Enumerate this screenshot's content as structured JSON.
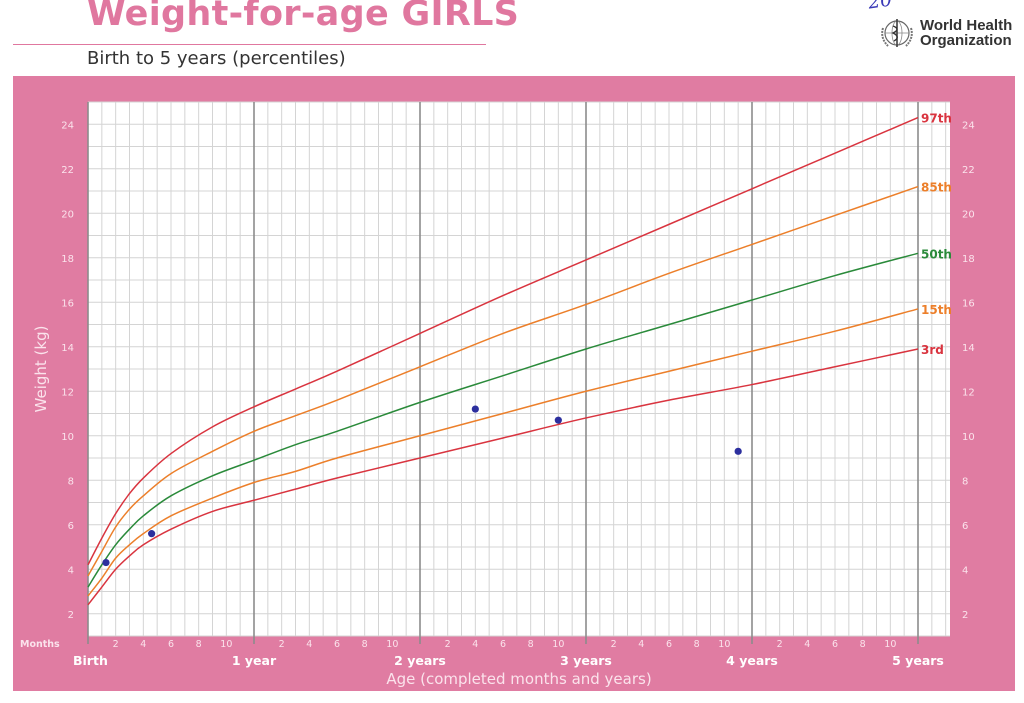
{
  "header": {
    "title": "Weight-for-age GIRLS",
    "subtitle": "Birth to 5 years (percentiles)",
    "handwritten_note": "20",
    "org_name_line1": "World Health",
    "org_name_line2": "Organization"
  },
  "colors": {
    "frame_pink": "#e07ca2",
    "title_pink": "#e0779f",
    "p3": "#d9343f",
    "p15": "#ec7f2a",
    "p50": "#2a8a3a",
    "p85": "#ec7f2a",
    "p97": "#d9343f",
    "point": "#2c2f9e",
    "grid_minor": "#d4d4d4",
    "grid_major": "#8c8c8c"
  },
  "axis": {
    "y_label": "Weight (kg)",
    "x_label": "Age (completed months and years)",
    "months_label": "Months",
    "year_labels": [
      "Birth",
      "1 year",
      "2 years",
      "3 years",
      "4 years",
      "5 years"
    ],
    "month_tick_labels": [
      "2",
      "4",
      "6",
      "8",
      "10"
    ],
    "y_tick_labels": [
      "2",
      "4",
      "6",
      "8",
      "10",
      "12",
      "14",
      "16",
      "18",
      "20",
      "22",
      "24"
    ]
  },
  "chart_data": {
    "type": "line",
    "title": "Weight-for-age GIRLS",
    "subtitle": "Birth to 5 years (percentiles)",
    "xlabel": "Age (completed months and years)",
    "ylabel": "Weight (kg)",
    "xlim": [
      0,
      62.4
    ],
    "ylim": [
      1,
      25
    ],
    "grid": true,
    "x_months": [
      0,
      1,
      2,
      3,
      4,
      6,
      9,
      12,
      15,
      18,
      24,
      30,
      36,
      42,
      48,
      54,
      60
    ],
    "series": [
      {
        "name": "3rd",
        "label": "3rd",
        "values": [
          2.4,
          3.2,
          4.0,
          4.6,
          5.1,
          5.8,
          6.6,
          7.1,
          7.6,
          8.1,
          9.0,
          9.9,
          10.8,
          11.6,
          12.3,
          13.1,
          13.9
        ]
      },
      {
        "name": "15th",
        "label": "15th",
        "values": [
          2.8,
          3.6,
          4.5,
          5.1,
          5.6,
          6.4,
          7.2,
          7.9,
          8.4,
          9.0,
          10.0,
          11.0,
          12.0,
          12.9,
          13.8,
          14.7,
          15.7
        ]
      },
      {
        "name": "50th",
        "label": "50th",
        "values": [
          3.2,
          4.2,
          5.1,
          5.8,
          6.4,
          7.3,
          8.2,
          8.9,
          9.6,
          10.2,
          11.5,
          12.7,
          13.9,
          15.0,
          16.1,
          17.2,
          18.2
        ]
      },
      {
        "name": "85th",
        "label": "85th",
        "values": [
          3.7,
          4.8,
          5.9,
          6.7,
          7.3,
          8.3,
          9.3,
          10.2,
          10.9,
          11.6,
          13.1,
          14.6,
          15.9,
          17.3,
          18.6,
          19.9,
          21.2
        ]
      },
      {
        "name": "97th",
        "label": "97th",
        "values": [
          4.2,
          5.4,
          6.5,
          7.4,
          8.1,
          9.2,
          10.4,
          11.3,
          12.1,
          12.9,
          14.6,
          16.3,
          17.9,
          19.5,
          21.1,
          22.7,
          24.3
        ]
      }
    ],
    "plotted_points": [
      {
        "age_months": 1.3,
        "weight_kg": 4.3
      },
      {
        "age_months": 4.6,
        "weight_kg": 5.6
      },
      {
        "age_months": 28,
        "weight_kg": 11.2
      },
      {
        "age_months": 34,
        "weight_kg": 10.7
      },
      {
        "age_months": 47,
        "weight_kg": 9.3
      }
    ]
  }
}
